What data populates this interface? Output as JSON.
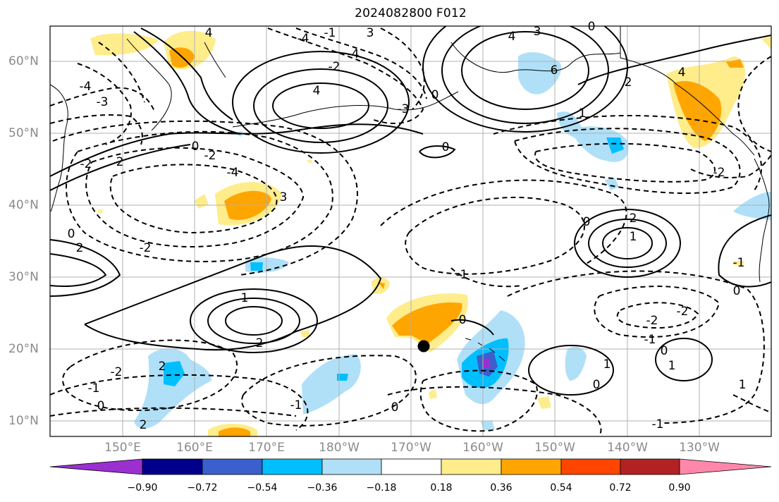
{
  "title": "2024082800 F012",
  "map": {
    "lat_labels": [
      "60°N",
      "50°N",
      "40°N",
      "30°N",
      "20°N",
      "10°N"
    ],
    "lon_labels": [
      "150°E",
      "160°E",
      "170°E",
      "180°W",
      "170°W",
      "160°W",
      "150°W",
      "140°W",
      "130°W"
    ],
    "contour_labels": [
      "4",
      "3",
      "-4",
      "-3",
      "-1",
      "-2",
      "0",
      "4",
      "3",
      "6",
      "0",
      "2",
      "4",
      "1",
      "-3",
      "-4",
      "-4",
      "-2",
      "4",
      "-2",
      "-1",
      "-2",
      "0",
      "-2",
      "0",
      "2",
      "-4",
      "3",
      "0",
      "1",
      "2",
      "1",
      "2",
      "0",
      "-1",
      "-2",
      "-2",
      "-1",
      "0",
      "2",
      "0",
      "1",
      "0",
      "-1",
      "-1",
      "1",
      "-2",
      "0",
      "0",
      "2",
      "2",
      "0",
      "-1",
      "1"
    ],
    "marker": "storm-center-dot"
  },
  "colorbar": {
    "tick_labels": [
      "−0.90",
      "−0.72",
      "−0.54",
      "−0.36",
      "−0.18",
      "0.18",
      "0.36",
      "0.54",
      "0.72",
      "0.90"
    ],
    "colors": [
      "#9b30d0",
      "#00008b",
      "#3b5fcd",
      "#00bfff",
      "#b0e0f8",
      "#ffffff",
      "#ffec8b",
      "#ffa500",
      "#ff4500",
      "#b22222",
      "#ff88aa"
    ]
  }
}
